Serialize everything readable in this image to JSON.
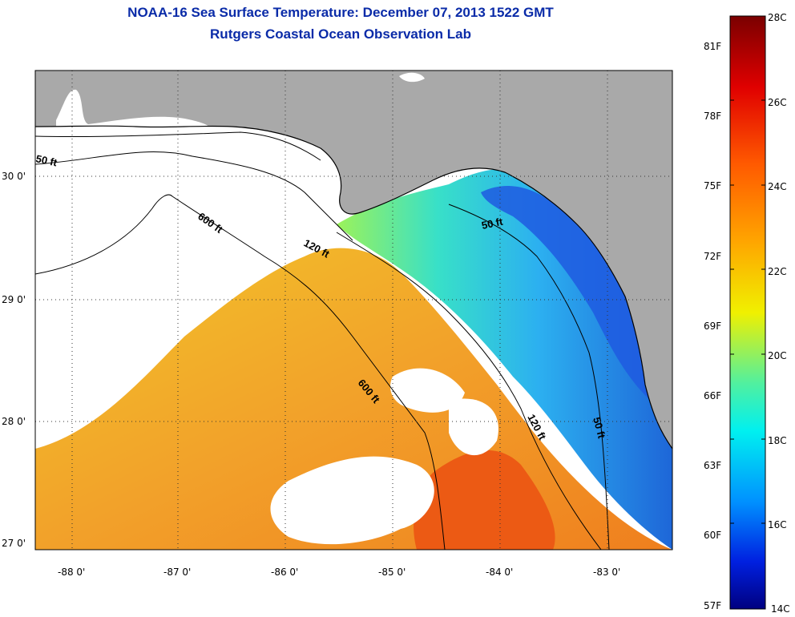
{
  "header": {
    "title": "NOAA-16 Sea Surface Temperature:  December 07, 2013 1522 GMT",
    "subtitle": "Rutgers Coastal Ocean Observation Lab"
  },
  "map": {
    "lat_labels": [
      "30 0'",
      "29 0'",
      "28 0'",
      "27 0'"
    ],
    "lon_labels": [
      "-88 0'",
      "-87 0'",
      "-86 0'",
      "-85 0'",
      "-84 0'",
      "-83 0'"
    ],
    "contour_labels": [
      "50 ft",
      "600 ft",
      "120 ft",
      "50 ft",
      "600 ft",
      "120 ft",
      "50 ft"
    ],
    "colors": {
      "land": "#a9a9a9",
      "cloud": "#ffffff",
      "border": "#000000"
    }
  },
  "colorbar": {
    "celsius": [
      "28C",
      "26C",
      "24C",
      "22C",
      "20C",
      "18C",
      "16C",
      "14C"
    ],
    "fahrenheit": [
      "81F",
      "78F",
      "75F",
      "72F",
      "69F",
      "66F",
      "63F",
      "60F",
      "57F"
    ],
    "min_c": 14,
    "max_c": 28
  }
}
